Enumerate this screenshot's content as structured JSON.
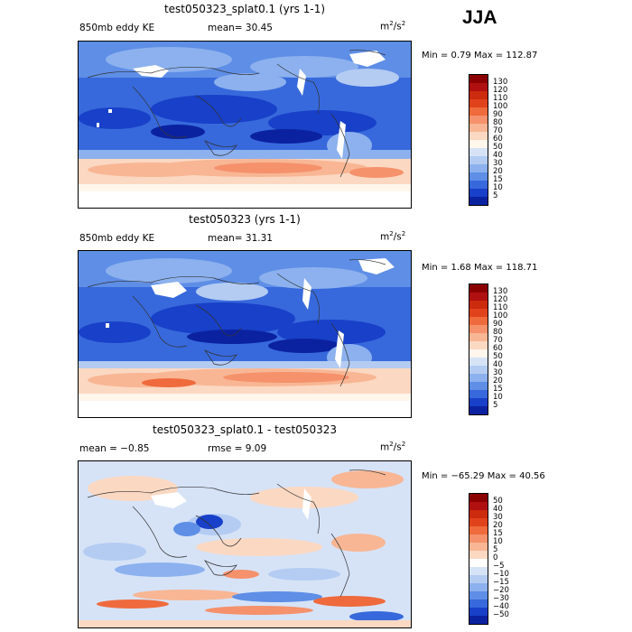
{
  "season": "JJA",
  "panels": [
    {
      "title": "test050323_splat0.1 (yrs 1-1)",
      "left_label": "850mb eddy KE",
      "center_label": "mean=  30.45",
      "units_base": "m",
      "units_exp": "2",
      "units_mid": "/s",
      "units_exp2": "2",
      "min_label": "Min =    0.79",
      "max_label": "Max = 112.87",
      "colorbar": {
        "labels": [
          "130",
          "120",
          "110",
          "100",
          "90",
          "80",
          "70",
          "60",
          "50",
          "40",
          "30",
          "20",
          "15",
          "10",
          "5"
        ],
        "colors": [
          "#8b0000",
          "#b01010",
          "#cc2b0e",
          "#e0431c",
          "#ef6a3c",
          "#f5916b",
          "#f8b694",
          "#fbd8c2",
          "#fff6ec",
          "#d6e3f7",
          "#b4ccf2",
          "#8cb1ee",
          "#5e8ee6",
          "#3769dc",
          "#1840c8",
          "#0b22a0"
        ]
      }
    },
    {
      "title": "test050323 (yrs 1-1)",
      "left_label": "850mb eddy KE",
      "center_label": "mean=  31.31",
      "units_base": "m",
      "units_exp": "2",
      "units_mid": "/s",
      "units_exp2": "2",
      "min_label": "Min =    1.68",
      "max_label": "Max = 118.71",
      "colorbar": {
        "labels": [
          "130",
          "120",
          "110",
          "100",
          "90",
          "80",
          "70",
          "60",
          "50",
          "40",
          "30",
          "20",
          "15",
          "10",
          "5"
        ],
        "colors": [
          "#8b0000",
          "#b01010",
          "#cc2b0e",
          "#e0431c",
          "#ef6a3c",
          "#f5916b",
          "#f8b694",
          "#fbd8c2",
          "#fff6ec",
          "#d6e3f7",
          "#b4ccf2",
          "#8cb1ee",
          "#5e8ee6",
          "#3769dc",
          "#1840c8",
          "#0b22a0"
        ]
      }
    },
    {
      "title": "test050323_splat0.1 - test050323",
      "left_label": "mean =  −0.85",
      "center_label": "rmse =   9.09",
      "units_base": "m",
      "units_exp": "2",
      "units_mid": "/s",
      "units_exp2": "2",
      "min_label": "Min = −65.29",
      "max_label": "Max =   40.56",
      "colorbar": {
        "labels": [
          "50",
          "40",
          "30",
          "20",
          "15",
          "10",
          "5",
          "0",
          "−5",
          "−10",
          "−15",
          "−20",
          "−30",
          "−40",
          "−50"
        ],
        "colors": [
          "#8b0000",
          "#b01010",
          "#cc2b0e",
          "#e0431c",
          "#ef6a3c",
          "#f5916b",
          "#f8b694",
          "#fbd8c2",
          "#ffffff",
          "#d6e3f7",
          "#b4ccf2",
          "#8cb1ee",
          "#5e8ee6",
          "#3769dc",
          "#1840c8",
          "#0b22a0"
        ]
      }
    }
  ]
}
